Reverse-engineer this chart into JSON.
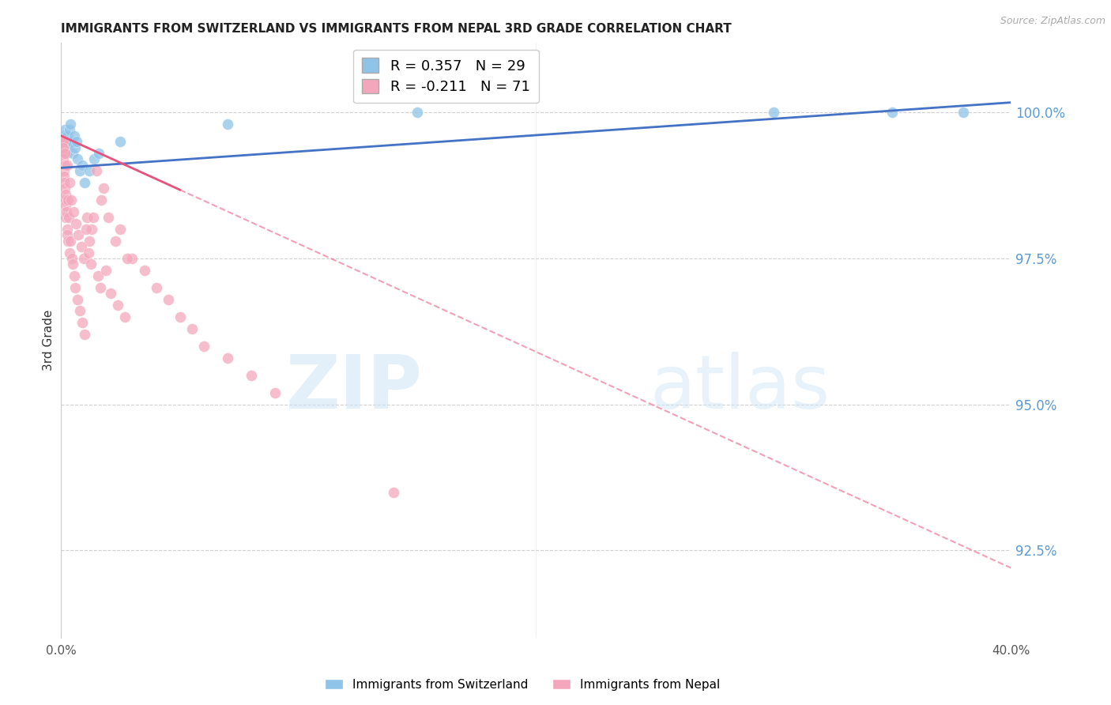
{
  "title": "IMMIGRANTS FROM SWITZERLAND VS IMMIGRANTS FROM NEPAL 3RD GRADE CORRELATION CHART",
  "source_text": "Source: ZipAtlas.com",
  "ylabel": "3rd Grade",
  "r_swiss": 0.357,
  "n_swiss": 29,
  "r_nepal": -0.211,
  "n_nepal": 71,
  "x_min": 0.0,
  "x_max": 40.0,
  "y_min": 91.0,
  "y_max": 101.2,
  "y_ticks": [
    92.5,
    95.0,
    97.5,
    100.0
  ],
  "color_swiss": "#8fc4e8",
  "color_nepal": "#f4a7bc",
  "color_swiss_line": "#4472c4",
  "color_nepal_line": "#e8527a",
  "color_right_axis": "#5b9bd5",
  "swiss_x": [
    0.1,
    0.12,
    0.15,
    0.18,
    0.2,
    0.22,
    0.25,
    0.28,
    0.3,
    0.35,
    0.4,
    0.45,
    0.5,
    0.55,
    0.6,
    0.7,
    0.8,
    0.9,
    1.0,
    1.2,
    1.4,
    1.6,
    2.5,
    7.0,
    15.0,
    30.0,
    35.0,
    38.0,
    0.65
  ],
  "swiss_y": [
    99.5,
    99.6,
    99.7,
    99.5,
    99.4,
    99.3,
    99.6,
    99.5,
    99.4,
    99.7,
    99.8,
    99.5,
    99.3,
    99.6,
    99.4,
    99.2,
    99.0,
    99.1,
    98.8,
    99.0,
    99.2,
    99.3,
    99.5,
    99.8,
    100.0,
    100.0,
    100.0,
    100.0,
    99.5
  ],
  "nepal_x": [
    0.05,
    0.06,
    0.07,
    0.08,
    0.09,
    0.1,
    0.11,
    0.12,
    0.13,
    0.14,
    0.15,
    0.16,
    0.17,
    0.18,
    0.19,
    0.2,
    0.22,
    0.24,
    0.26,
    0.28,
    0.3,
    0.33,
    0.36,
    0.4,
    0.45,
    0.5,
    0.55,
    0.6,
    0.7,
    0.8,
    0.9,
    1.0,
    1.1,
    1.2,
    1.3,
    1.5,
    1.7,
    2.0,
    2.3,
    2.5,
    3.0,
    3.5,
    4.0,
    4.5,
    5.0,
    5.5,
    6.0,
    7.0,
    8.0,
    9.0,
    1.8,
    2.8,
    0.25,
    0.35,
    0.42,
    0.52,
    0.62,
    0.72,
    0.85,
    0.95,
    1.05,
    1.15,
    1.25,
    1.35,
    1.55,
    1.65,
    1.9,
    2.1,
    2.4,
    2.7,
    14.0
  ],
  "nepal_y": [
    99.5,
    99.4,
    99.3,
    99.5,
    99.2,
    99.4,
    99.0,
    98.9,
    98.8,
    99.1,
    99.3,
    98.7,
    98.5,
    98.4,
    98.6,
    98.2,
    98.3,
    98.0,
    97.9,
    97.8,
    98.5,
    98.2,
    97.6,
    97.8,
    97.5,
    97.4,
    97.2,
    97.0,
    96.8,
    96.6,
    96.4,
    96.2,
    98.2,
    97.8,
    98.0,
    99.0,
    98.5,
    98.2,
    97.8,
    98.0,
    97.5,
    97.3,
    97.0,
    96.8,
    96.5,
    96.3,
    96.0,
    95.8,
    95.5,
    95.2,
    98.7,
    97.5,
    99.1,
    98.8,
    98.5,
    98.3,
    98.1,
    97.9,
    97.7,
    97.5,
    98.0,
    97.6,
    97.4,
    98.2,
    97.2,
    97.0,
    97.3,
    96.9,
    96.7,
    96.5,
    93.5
  ]
}
